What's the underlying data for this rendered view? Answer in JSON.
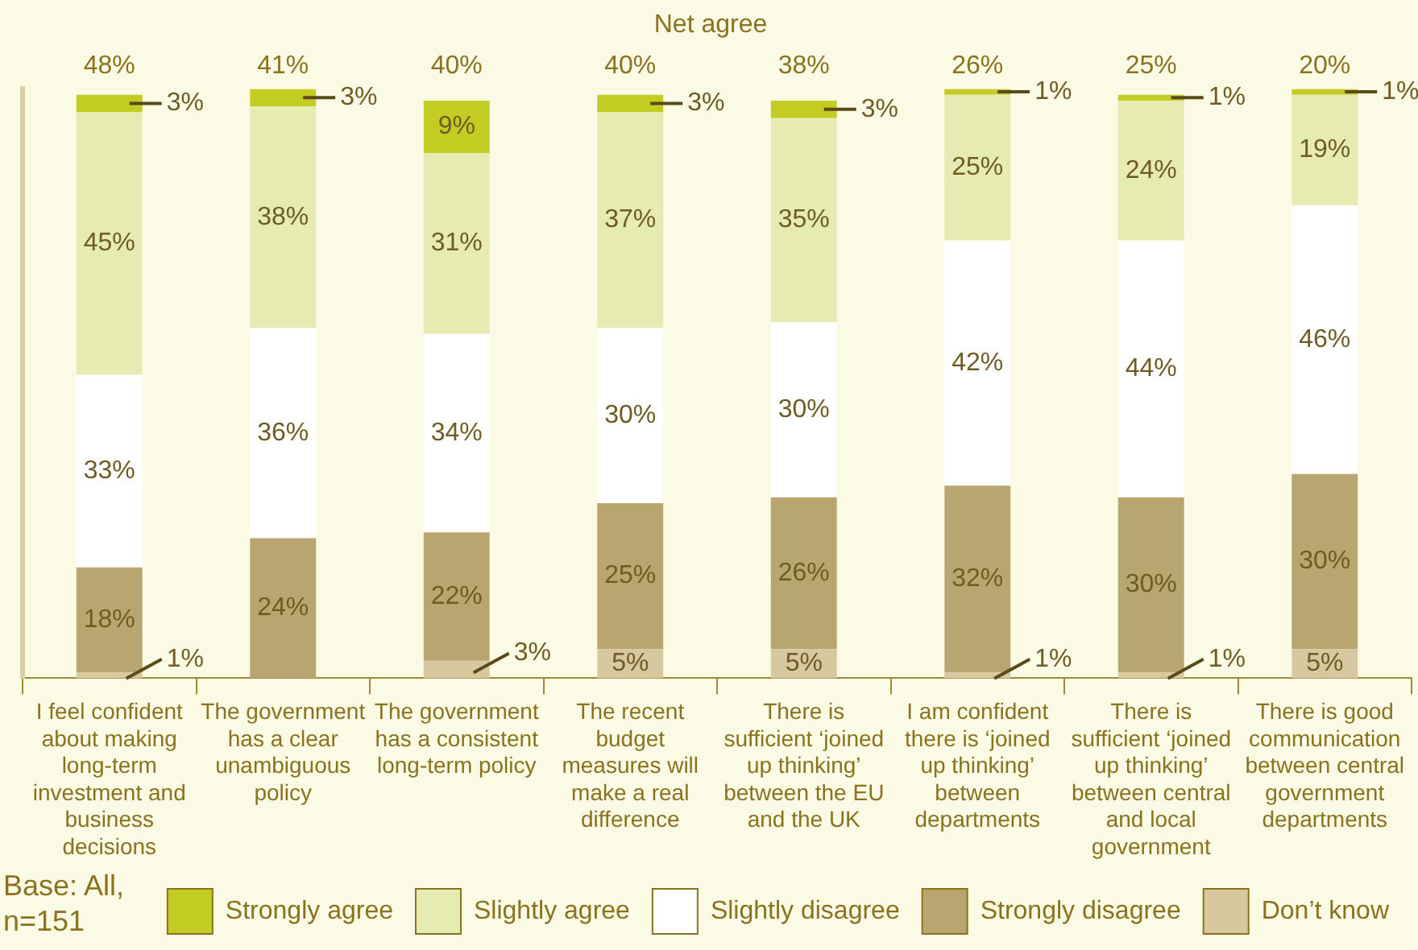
{
  "chart_data": {
    "type": "bar",
    "title": "Net agree",
    "stacked": true,
    "legend": "bottom",
    "categories": [
      "I feel confident about making long-term investment and business decisions",
      "The government has a clear unambiguous policy",
      "The government has a consistent long-term policy",
      "The recent budget measures will make a real difference",
      "There is sufficient ‘joined up thinking’ between the EU and the UK",
      "I am confident there is ‘joined up thinking’ between departments",
      "There is sufficient ‘joined up thinking’ between central and local government",
      "There is good communication between central government departments"
    ],
    "series": [
      {
        "name": "Don’t know",
        "color": "#d8c8a0",
        "values": [
          1,
          null,
          3,
          5,
          5,
          1,
          1,
          5
        ],
        "value_labels": [
          "1%",
          null,
          "3%",
          "5%",
          "5%",
          "1%",
          "1%",
          "5%"
        ]
      },
      {
        "name": "Strongly disagree",
        "color": "#b8a570",
        "values": [
          18,
          24,
          22,
          25,
          26,
          32,
          30,
          30
        ],
        "value_labels": [
          "18%",
          "24%",
          "22%",
          "25%",
          "26%",
          "32%",
          "30%",
          "30%"
        ]
      },
      {
        "name": "Slightly disagree",
        "color": "#ffffff",
        "values": [
          33,
          36,
          34,
          30,
          30,
          42,
          44,
          46
        ],
        "value_labels": [
          "33%",
          "36%",
          "34%",
          "30%",
          "30%",
          "42%",
          "44%",
          "46%"
        ]
      },
      {
        "name": "Slightly agree",
        "color": "#e6ebb2",
        "values": [
          45,
          38,
          31,
          37,
          35,
          25,
          24,
          19
        ],
        "value_labels": [
          "45%",
          "38%",
          "31%",
          "37%",
          "35%",
          "25%",
          "24%",
          "19%"
        ]
      },
      {
        "name": "Strongly agree",
        "color": "#c2cc22",
        "values": [
          3,
          3,
          9,
          3,
          3,
          1,
          1,
          1
        ],
        "value_labels": [
          "3%",
          "3%",
          "9%",
          "3%",
          "3%",
          "1%",
          "1%",
          "1%"
        ]
      }
    ],
    "annotations": [
      "48%",
      "41%",
      "40%",
      "40%",
      "38%",
      "26%",
      "25%",
      "20%",
      "Base: All, n=151"
    ]
  }
}
